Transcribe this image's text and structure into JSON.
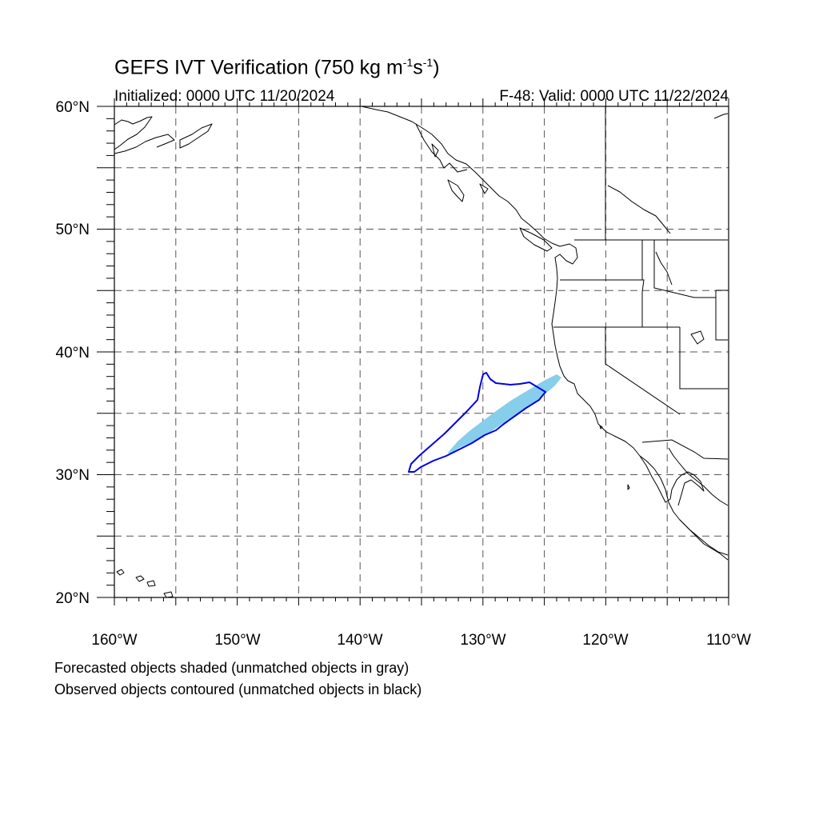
{
  "header": {
    "title_main": "GEFS IVT Verification (750 kg m",
    "title_exp1": "-1",
    "title_mid": "s",
    "title_exp2": "-1",
    "title_end": ")",
    "initialized": "Initialized: 0000 UTC 11/20/2024",
    "valid": "F-48: Valid: 0000 UTC 11/22/2024"
  },
  "map": {
    "projection": "cylindrical equidistant",
    "lon_range": [
      -160,
      -110
    ],
    "lat_range": [
      20,
      60
    ],
    "gridlines": "dashed every 5 degrees",
    "lat_labels": [
      "20°N",
      "30°N",
      "40°N",
      "50°N",
      "60°N"
    ],
    "lon_labels": [
      "160°W",
      "150°W",
      "140°W",
      "130°W",
      "120°W",
      "110°W"
    ],
    "features": [
      "coastlines",
      "national borders",
      "state borders"
    ],
    "colors": {
      "forecast_object": "#87ceeb",
      "observed_object": "#0000e6",
      "unmatched_forecast": "#808080",
      "unmatched_observed": "#000000"
    },
    "forecast_object": {
      "style": "shaded",
      "matched": true,
      "approx_extent_lat": [
        31.5,
        38.2
      ],
      "approx_extent_lon": [
        -133,
        -124
      ]
    },
    "observed_object": {
      "style": "contoured",
      "matched": true,
      "approx_extent_lat": [
        30.2,
        38.5
      ],
      "approx_extent_lon": [
        -136,
        -124.8
      ]
    }
  },
  "captions": {
    "line1": "Forecasted objects shaded (unmatched objects in gray)",
    "line2": "Observed objects contoured (unmatched objects in black)"
  }
}
